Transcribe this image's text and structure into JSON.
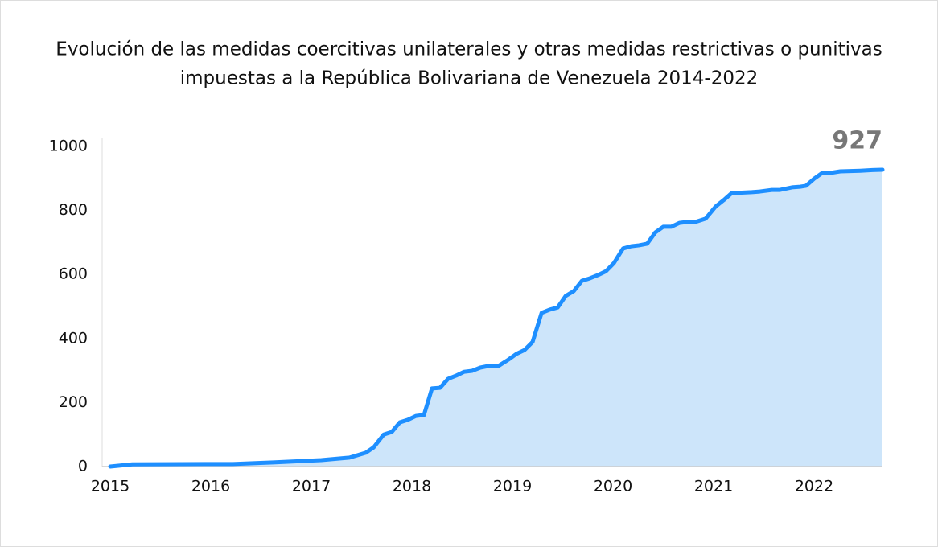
{
  "chart_data": {
    "type": "area",
    "title": [
      "Evolución de las medidas coercitivas unilaterales y otras medidas restrictivas o punitivas",
      "impuestas a la República Bolivariana de Venezuela 2014-2022"
    ],
    "annotation": "927",
    "x": [
      2015.0,
      2015.22,
      2016.22,
      2016.62,
      2017.1,
      2017.38,
      2017.54,
      2017.62,
      2017.72,
      2017.8,
      2017.88,
      2017.96,
      2018.04,
      2018.12,
      2018.2,
      2018.28,
      2018.36,
      2018.44,
      2018.52,
      2018.6,
      2018.68,
      2018.76,
      2018.86,
      2018.96,
      2019.04,
      2019.12,
      2019.2,
      2019.29,
      2019.37,
      2019.45,
      2019.53,
      2019.61,
      2019.69,
      2019.77,
      2019.85,
      2019.93,
      2020.01,
      2020.1,
      2020.18,
      2020.26,
      2020.34,
      2020.42,
      2020.5,
      2020.58,
      2020.66,
      2020.74,
      2020.82,
      2020.92,
      2021.02,
      2021.1,
      2021.18,
      2021.38,
      2021.46,
      2021.58,
      2021.66,
      2021.78,
      2021.86,
      2021.92,
      2022.0,
      2022.08,
      2022.16,
      2022.26,
      2022.46,
      2022.58,
      2022.68
    ],
    "series": [
      {
        "color": "#1e8fff",
        "fill": "#cde5fa",
        "values": [
          0,
          7,
          8,
          13,
          20,
          28,
          43,
          60,
          100,
          108,
          138,
          146,
          158,
          161,
          244,
          246,
          274,
          284,
          296,
          299,
          309,
          314,
          314,
          334,
          352,
          364,
          389,
          480,
          490,
          497,
          533,
          548,
          580,
          588,
          598,
          610,
          636,
          681,
          688,
          691,
          696,
          731,
          749,
          749,
          761,
          764,
          764,
          774,
          812,
          832,
          854,
          857,
          859,
          864,
          864,
          872,
          874,
          877,
          899,
          917,
          917,
          922,
          924,
          926,
          927
        ]
      }
    ],
    "xlim": [
      2014.92,
      2022.68
    ],
    "xticks": [
      2015,
      2016,
      2017,
      2018,
      2019,
      2020,
      2021,
      2022
    ],
    "ylim": [
      0,
      1025
    ],
    "yticks": [
      0,
      200,
      400,
      600,
      800,
      1000
    ]
  }
}
